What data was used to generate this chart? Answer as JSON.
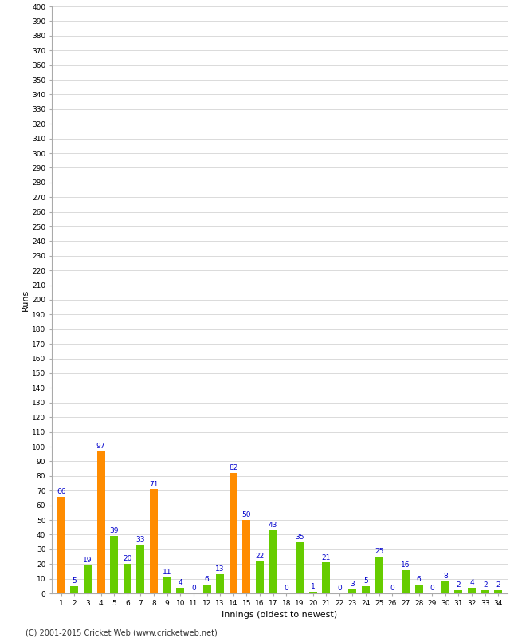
{
  "xlabel": "Innings (oldest to newest)",
  "ylabel": "Runs",
  "ylim": [
    0,
    400
  ],
  "background_color": "#ffffff",
  "grid_color": "#cccccc",
  "innings": [
    1,
    2,
    3,
    4,
    5,
    6,
    7,
    8,
    9,
    10,
    11,
    12,
    13,
    14,
    15,
    16,
    17,
    18,
    19,
    20,
    21,
    22,
    23,
    24,
    25,
    26,
    27,
    28,
    29,
    30,
    31,
    32,
    33,
    34
  ],
  "values": [
    66,
    5,
    19,
    97,
    39,
    20,
    33,
    71,
    11,
    4,
    0,
    6,
    13,
    82,
    50,
    22,
    43,
    0,
    35,
    1,
    21,
    0,
    3,
    5,
    25,
    0,
    16,
    6,
    0,
    8,
    2,
    4,
    2,
    2
  ],
  "colors": [
    "#ff8c00",
    "#66cc00",
    "#66cc00",
    "#ff8c00",
    "#66cc00",
    "#66cc00",
    "#66cc00",
    "#ff8c00",
    "#66cc00",
    "#66cc00",
    "#66cc00",
    "#66cc00",
    "#66cc00",
    "#ff8c00",
    "#ff8c00",
    "#66cc00",
    "#66cc00",
    "#66cc00",
    "#66cc00",
    "#66cc00",
    "#66cc00",
    "#66cc00",
    "#66cc00",
    "#66cc00",
    "#66cc00",
    "#66cc00",
    "#66cc00",
    "#66cc00",
    "#66cc00",
    "#66cc00",
    "#66cc00",
    "#66cc00",
    "#66cc00",
    "#66cc00"
  ],
  "label_color": "#0000cc",
  "label_fontsize": 6.5,
  "axis_fontsize": 8,
  "tick_fontsize": 6.5,
  "ylabel_fontsize": 8,
  "footer": "(C) 2001-2015 Cricket Web (www.cricketweb.net)"
}
